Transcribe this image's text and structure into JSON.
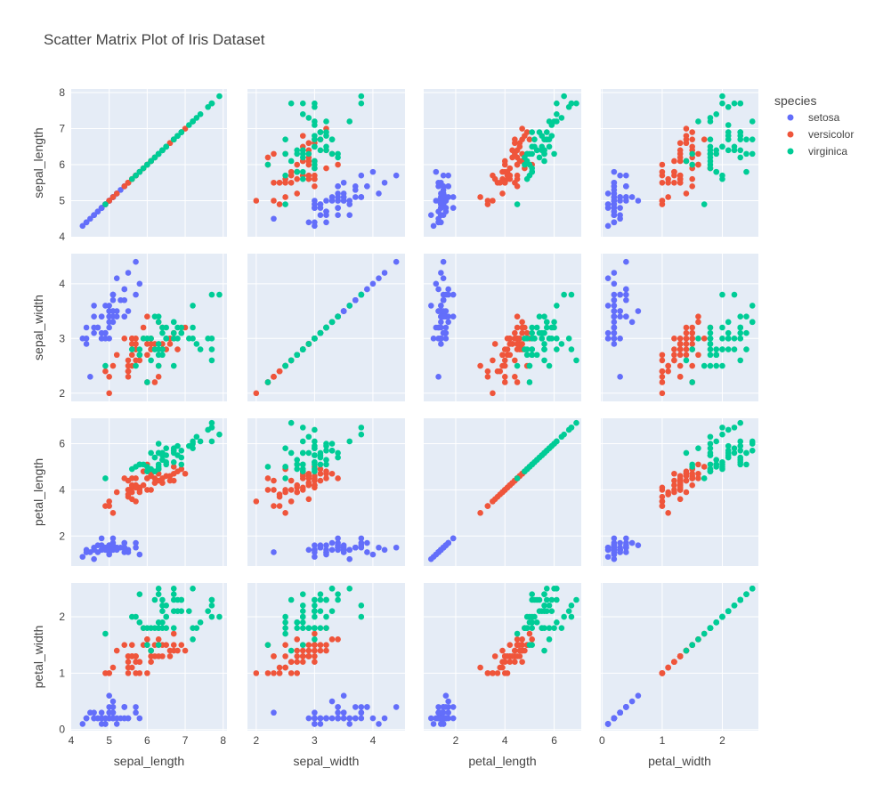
{
  "chart_data": {
    "type": "scatter_matrix",
    "title": "Scatter Matrix Plot of Iris Dataset",
    "dimensions": [
      "sepal_length",
      "sepal_width",
      "petal_length",
      "petal_width"
    ],
    "ranges": {
      "sepal_length": [
        4.0,
        8.1
      ],
      "sepal_width": [
        1.85,
        4.55
      ],
      "petal_length": [
        0.7,
        7.1
      ],
      "petal_width": [
        -0.02,
        2.6
      ]
    },
    "ticks": {
      "sepal_length": [
        4,
        5,
        6,
        7,
        8
      ],
      "sepal_width": [
        2,
        3,
        4
      ],
      "petal_length": [
        2,
        4,
        6
      ],
      "petal_width": [
        0,
        1,
        2
      ]
    },
    "legend": {
      "title": "species",
      "placement": "top-right"
    },
    "grid": true,
    "series": [
      {
        "name": "setosa",
        "color": "#636efa",
        "points": [
          [
            5.1,
            3.5,
            1.4,
            0.2
          ],
          [
            4.9,
            3.0,
            1.4,
            0.2
          ],
          [
            4.7,
            3.2,
            1.3,
            0.2
          ],
          [
            4.6,
            3.1,
            1.5,
            0.2
          ],
          [
            5.0,
            3.6,
            1.4,
            0.2
          ],
          [
            5.4,
            3.9,
            1.7,
            0.4
          ],
          [
            4.6,
            3.4,
            1.4,
            0.3
          ],
          [
            5.0,
            3.4,
            1.5,
            0.2
          ],
          [
            4.4,
            2.9,
            1.4,
            0.2
          ],
          [
            4.9,
            3.1,
            1.5,
            0.1
          ],
          [
            5.4,
            3.7,
            1.5,
            0.2
          ],
          [
            4.8,
            3.4,
            1.6,
            0.2
          ],
          [
            4.8,
            3.0,
            1.4,
            0.1
          ],
          [
            4.3,
            3.0,
            1.1,
            0.1
          ],
          [
            5.8,
            4.0,
            1.2,
            0.2
          ],
          [
            5.7,
            4.4,
            1.5,
            0.4
          ],
          [
            5.4,
            3.9,
            1.3,
            0.4
          ],
          [
            5.1,
            3.5,
            1.4,
            0.3
          ],
          [
            5.7,
            3.8,
            1.7,
            0.3
          ],
          [
            5.1,
            3.8,
            1.5,
            0.3
          ],
          [
            5.4,
            3.4,
            1.7,
            0.2
          ],
          [
            5.1,
            3.7,
            1.5,
            0.4
          ],
          [
            4.6,
            3.6,
            1.0,
            0.2
          ],
          [
            5.1,
            3.3,
            1.7,
            0.5
          ],
          [
            4.8,
            3.4,
            1.9,
            0.2
          ],
          [
            5.0,
            3.0,
            1.6,
            0.2
          ],
          [
            5.0,
            3.4,
            1.6,
            0.4
          ],
          [
            5.2,
            3.5,
            1.5,
            0.2
          ],
          [
            5.2,
            3.4,
            1.4,
            0.2
          ],
          [
            4.7,
            3.2,
            1.6,
            0.2
          ],
          [
            4.8,
            3.1,
            1.6,
            0.2
          ],
          [
            5.4,
            3.4,
            1.5,
            0.4
          ],
          [
            5.2,
            4.1,
            1.5,
            0.1
          ],
          [
            5.5,
            4.2,
            1.4,
            0.2
          ],
          [
            4.9,
            3.1,
            1.5,
            0.2
          ],
          [
            5.0,
            3.2,
            1.2,
            0.2
          ],
          [
            5.5,
            3.5,
            1.3,
            0.2
          ],
          [
            4.9,
            3.6,
            1.4,
            0.1
          ],
          [
            4.4,
            3.0,
            1.3,
            0.2
          ],
          [
            5.1,
            3.4,
            1.5,
            0.2
          ],
          [
            5.0,
            3.5,
            1.3,
            0.3
          ],
          [
            4.5,
            2.3,
            1.3,
            0.3
          ],
          [
            4.4,
            3.2,
            1.3,
            0.2
          ],
          [
            5.0,
            3.5,
            1.6,
            0.6
          ],
          [
            5.1,
            3.8,
            1.9,
            0.4
          ],
          [
            4.8,
            3.0,
            1.4,
            0.3
          ],
          [
            5.1,
            3.8,
            1.6,
            0.2
          ],
          [
            4.6,
            3.2,
            1.4,
            0.2
          ],
          [
            5.3,
            3.7,
            1.5,
            0.2
          ],
          [
            5.0,
            3.3,
            1.4,
            0.2
          ]
        ]
      },
      {
        "name": "versicolor",
        "color": "#ef553b",
        "points": [
          [
            7.0,
            3.2,
            4.7,
            1.4
          ],
          [
            6.4,
            3.2,
            4.5,
            1.5
          ],
          [
            6.9,
            3.1,
            4.9,
            1.5
          ],
          [
            5.5,
            2.3,
            4.0,
            1.3
          ],
          [
            6.5,
            2.8,
            4.6,
            1.5
          ],
          [
            5.7,
            2.8,
            4.5,
            1.3
          ],
          [
            6.3,
            3.3,
            4.7,
            1.6
          ],
          [
            4.9,
            2.4,
            3.3,
            1.0
          ],
          [
            6.6,
            2.9,
            4.6,
            1.3
          ],
          [
            5.2,
            2.7,
            3.9,
            1.4
          ],
          [
            5.0,
            2.0,
            3.5,
            1.0
          ],
          [
            5.9,
            3.0,
            4.2,
            1.5
          ],
          [
            6.0,
            2.2,
            4.0,
            1.0
          ],
          [
            6.1,
            2.9,
            4.7,
            1.4
          ],
          [
            5.6,
            2.9,
            3.6,
            1.3
          ],
          [
            6.7,
            3.1,
            4.4,
            1.4
          ],
          [
            5.6,
            3.0,
            4.5,
            1.5
          ],
          [
            5.8,
            2.7,
            4.1,
            1.0
          ],
          [
            6.2,
            2.2,
            4.5,
            1.5
          ],
          [
            5.6,
            2.5,
            3.9,
            1.1
          ],
          [
            5.9,
            3.2,
            4.8,
            1.8
          ],
          [
            6.1,
            2.8,
            4.0,
            1.3
          ],
          [
            6.3,
            2.5,
            4.9,
            1.5
          ],
          [
            6.1,
            2.8,
            4.7,
            1.2
          ],
          [
            6.4,
            2.9,
            4.3,
            1.3
          ],
          [
            6.6,
            3.0,
            4.4,
            1.4
          ],
          [
            6.8,
            2.8,
            4.8,
            1.4
          ],
          [
            6.7,
            3.0,
            5.0,
            1.7
          ],
          [
            6.0,
            2.9,
            4.5,
            1.5
          ],
          [
            5.7,
            2.6,
            3.5,
            1.0
          ],
          [
            5.5,
            2.4,
            3.8,
            1.1
          ],
          [
            5.5,
            2.4,
            3.7,
            1.0
          ],
          [
            5.8,
            2.7,
            3.9,
            1.2
          ],
          [
            6.0,
            2.7,
            5.1,
            1.6
          ],
          [
            5.4,
            3.0,
            4.5,
            1.5
          ],
          [
            6.0,
            3.4,
            4.5,
            1.6
          ],
          [
            6.7,
            3.1,
            4.7,
            1.5
          ],
          [
            6.3,
            2.3,
            4.4,
            1.3
          ],
          [
            5.6,
            3.0,
            4.1,
            1.3
          ],
          [
            5.5,
            2.5,
            4.0,
            1.3
          ],
          [
            5.5,
            2.6,
            4.4,
            1.2
          ],
          [
            6.1,
            3.0,
            4.6,
            1.4
          ],
          [
            5.8,
            2.6,
            4.0,
            1.2
          ],
          [
            5.0,
            2.3,
            3.3,
            1.0
          ],
          [
            5.6,
            2.7,
            4.2,
            1.3
          ],
          [
            5.7,
            3.0,
            4.2,
            1.2
          ],
          [
            5.7,
            2.9,
            4.2,
            1.3
          ],
          [
            6.2,
            2.9,
            4.3,
            1.3
          ],
          [
            5.1,
            2.5,
            3.0,
            1.1
          ],
          [
            5.7,
            2.8,
            4.1,
            1.3
          ]
        ]
      },
      {
        "name": "virginica",
        "color": "#00cc96",
        "points": [
          [
            6.3,
            3.3,
            6.0,
            2.5
          ],
          [
            5.8,
            2.7,
            5.1,
            1.9
          ],
          [
            7.1,
            3.0,
            5.9,
            2.1
          ],
          [
            6.3,
            2.9,
            5.6,
            1.8
          ],
          [
            6.5,
            3.0,
            5.8,
            2.2
          ],
          [
            7.6,
            3.0,
            6.6,
            2.1
          ],
          [
            4.9,
            2.5,
            4.5,
            1.7
          ],
          [
            7.3,
            2.9,
            6.3,
            1.8
          ],
          [
            6.7,
            2.5,
            5.8,
            1.8
          ],
          [
            7.2,
            3.6,
            6.1,
            2.5
          ],
          [
            6.5,
            3.2,
            5.1,
            2.0
          ],
          [
            6.4,
            2.7,
            5.3,
            1.9
          ],
          [
            6.8,
            3.0,
            5.5,
            2.1
          ],
          [
            5.7,
            2.5,
            5.0,
            2.0
          ],
          [
            5.8,
            2.8,
            5.1,
            2.4
          ],
          [
            6.4,
            3.2,
            5.3,
            2.3
          ],
          [
            6.5,
            3.0,
            5.5,
            1.8
          ],
          [
            7.7,
            3.8,
            6.7,
            2.2
          ],
          [
            7.7,
            2.6,
            6.9,
            2.3
          ],
          [
            6.0,
            2.2,
            5.0,
            1.5
          ],
          [
            6.9,
            3.2,
            5.7,
            2.3
          ],
          [
            5.6,
            2.8,
            4.9,
            2.0
          ],
          [
            7.7,
            2.8,
            6.7,
            2.0
          ],
          [
            6.3,
            2.7,
            4.9,
            1.8
          ],
          [
            6.7,
            3.3,
            5.7,
            2.1
          ],
          [
            7.2,
            3.2,
            6.0,
            1.8
          ],
          [
            6.2,
            2.8,
            4.8,
            1.8
          ],
          [
            6.1,
            3.0,
            4.9,
            1.8
          ],
          [
            6.4,
            2.8,
            5.6,
            2.1
          ],
          [
            7.2,
            3.0,
            5.8,
            1.6
          ],
          [
            7.4,
            2.8,
            6.1,
            1.9
          ],
          [
            7.9,
            3.8,
            6.4,
            2.0
          ],
          [
            6.4,
            2.8,
            5.6,
            2.2
          ],
          [
            6.3,
            2.8,
            5.1,
            1.5
          ],
          [
            6.1,
            2.6,
            5.6,
            1.4
          ],
          [
            7.7,
            3.0,
            6.1,
            2.3
          ],
          [
            6.3,
            3.4,
            5.6,
            2.4
          ],
          [
            6.4,
            3.1,
            5.5,
            1.8
          ],
          [
            6.0,
            3.0,
            4.8,
            1.8
          ],
          [
            6.9,
            3.1,
            5.4,
            2.1
          ],
          [
            6.7,
            3.1,
            5.6,
            2.4
          ],
          [
            6.9,
            3.1,
            5.1,
            2.3
          ],
          [
            5.8,
            2.7,
            5.1,
            1.9
          ],
          [
            6.8,
            3.2,
            5.9,
            2.3
          ],
          [
            6.7,
            3.3,
            5.7,
            2.5
          ],
          [
            6.7,
            3.0,
            5.2,
            2.3
          ],
          [
            6.3,
            2.5,
            5.0,
            1.9
          ],
          [
            6.5,
            3.0,
            5.2,
            2.0
          ],
          [
            6.2,
            3.4,
            5.4,
            2.3
          ],
          [
            5.9,
            3.0,
            5.1,
            1.8
          ]
        ]
      }
    ]
  }
}
